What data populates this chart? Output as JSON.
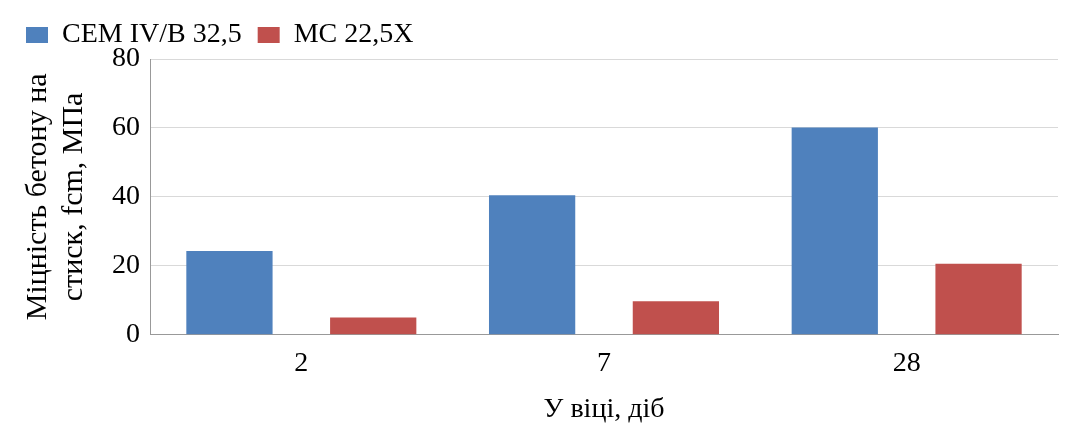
{
  "chart_data": {
    "type": "bar",
    "xlabel": "У віці, діб",
    "ylabel": "Міцність бетону на стиск, fcm, МПа",
    "categories": [
      "2",
      "7",
      "28"
    ],
    "series": [
      {
        "name": "CEM IV/B 32,5",
        "color": "#4f81bd",
        "values": [
          24.3,
          40.5,
          60.1
        ]
      },
      {
        "name": "МС 22,5Х",
        "color": "#c0504d",
        "values": [
          5,
          9.7,
          20.6
        ]
      }
    ],
    "ylim": [
      0,
      80
    ],
    "yticks": [
      0,
      20,
      40,
      60,
      80
    ],
    "grid": "y",
    "legend": "top left"
  }
}
